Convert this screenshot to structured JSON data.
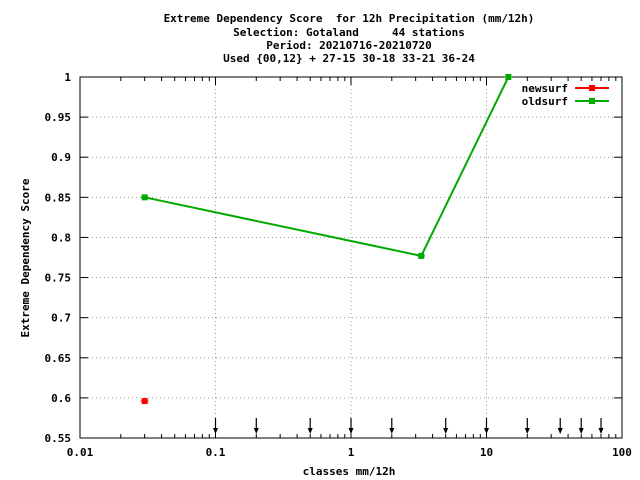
{
  "chart_data": {
    "type": "line",
    "title_lines": [
      "Extreme Dependency Score  for 12h Precipitation (mm/12h)",
      "Selection: Gotaland     44 stations",
      "Period: 20210716-20210720",
      "Used {00,12} + 27-15 30-18 33-21 36-24"
    ],
    "xlabel": "classes mm/12h",
    "ylabel": "Extreme Dependency Score",
    "x_scale": "log",
    "xlim": [
      0.01,
      100
    ],
    "ylim": [
      0.55,
      1.0
    ],
    "x_ticks": [
      0.01,
      0.1,
      1,
      10,
      100
    ],
    "x_tick_labels": [
      "0.01",
      "0.1",
      "1",
      "10",
      "100"
    ],
    "y_ticks": [
      0.55,
      0.6,
      0.65,
      0.7,
      0.75,
      0.8,
      0.85,
      0.9,
      0.95,
      1.0
    ],
    "y_tick_labels": [
      "0.55",
      "0.6",
      "0.65",
      "0.7",
      "0.75",
      "0.8",
      "0.85",
      "0.9",
      "0.95",
      "1"
    ],
    "grid": true,
    "legend_position": "top-right",
    "series": [
      {
        "name": "newsurf",
        "color": "#ff0000",
        "x": [
          0.03
        ],
        "y": [
          0.596
        ]
      },
      {
        "name": "oldsurf",
        "color": "#00aa00",
        "x": [
          0.03,
          3.3,
          14.5
        ],
        "y": [
          0.85,
          0.777,
          1.0
        ]
      }
    ],
    "class_markers": [
      0.1,
      0.2,
      0.5,
      1,
      2,
      5,
      10,
      20,
      35,
      50,
      70
    ]
  }
}
